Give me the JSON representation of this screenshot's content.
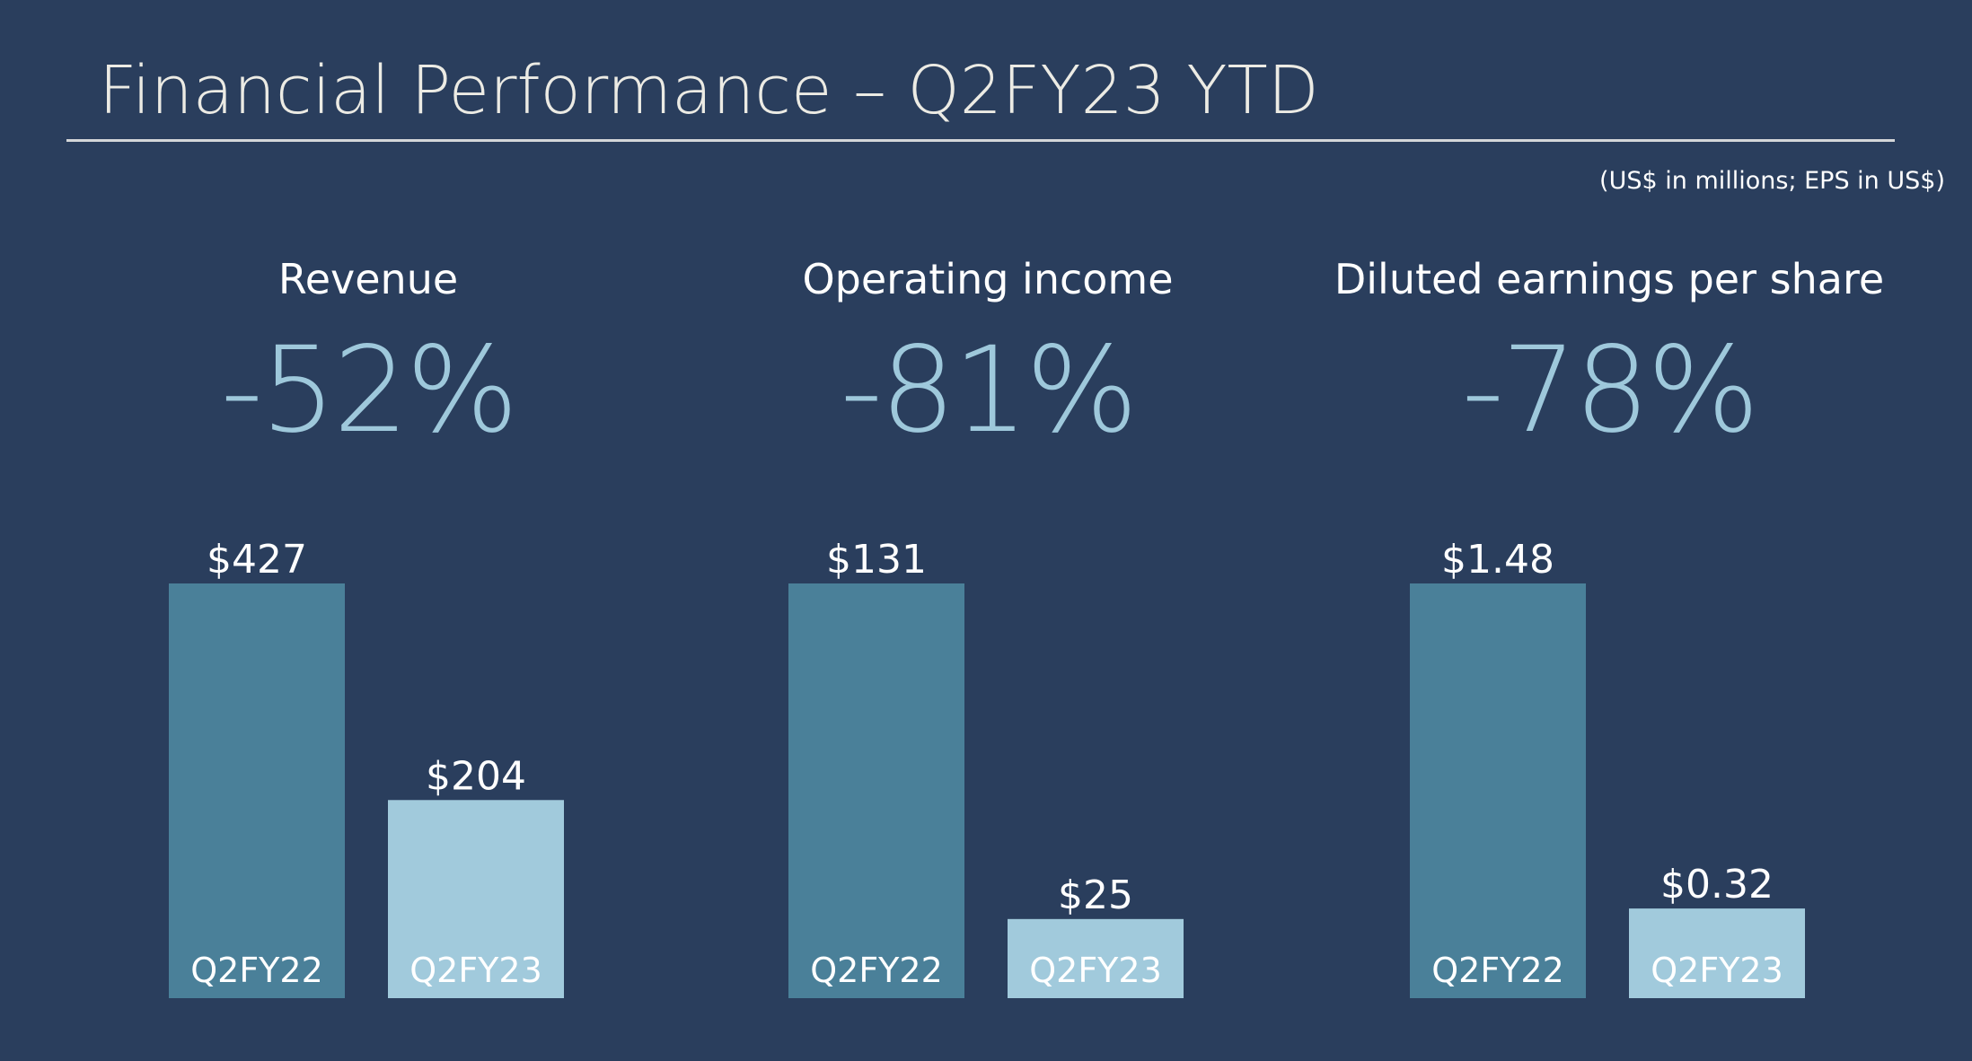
{
  "title": "Financial Performance – Q2FY23 YTD",
  "units_note": "(US$ in millions; EPS in US$)",
  "colors": {
    "background": "#2a3e5d",
    "bar_prior": "#4a8099",
    "bar_current": "#a1cadc",
    "change_text": "#9ec8db"
  },
  "panels": [
    {
      "label": "Revenue",
      "change": "-52%"
    },
    {
      "label": "Operating income",
      "change": "-81%"
    },
    {
      "label": "Diluted earnings per share",
      "change": "-78%"
    }
  ],
  "chart_data": [
    {
      "type": "bar",
      "title": "Revenue",
      "categories": [
        "Q2FY22",
        "Q2FY23"
      ],
      "values": [
        427,
        204
      ],
      "value_labels": [
        "$427",
        "$204"
      ]
    },
    {
      "type": "bar",
      "title": "Operating income",
      "categories": [
        "Q2FY22",
        "Q2FY23"
      ],
      "values": [
        131,
        25
      ],
      "value_labels": [
        "$131",
        "$25"
      ]
    },
    {
      "type": "bar",
      "title": "Diluted earnings per share",
      "categories": [
        "Q2FY22",
        "Q2FY23"
      ],
      "values": [
        1.48,
        0.32
      ],
      "value_labels": [
        "$1.48",
        "$0.32"
      ]
    }
  ]
}
